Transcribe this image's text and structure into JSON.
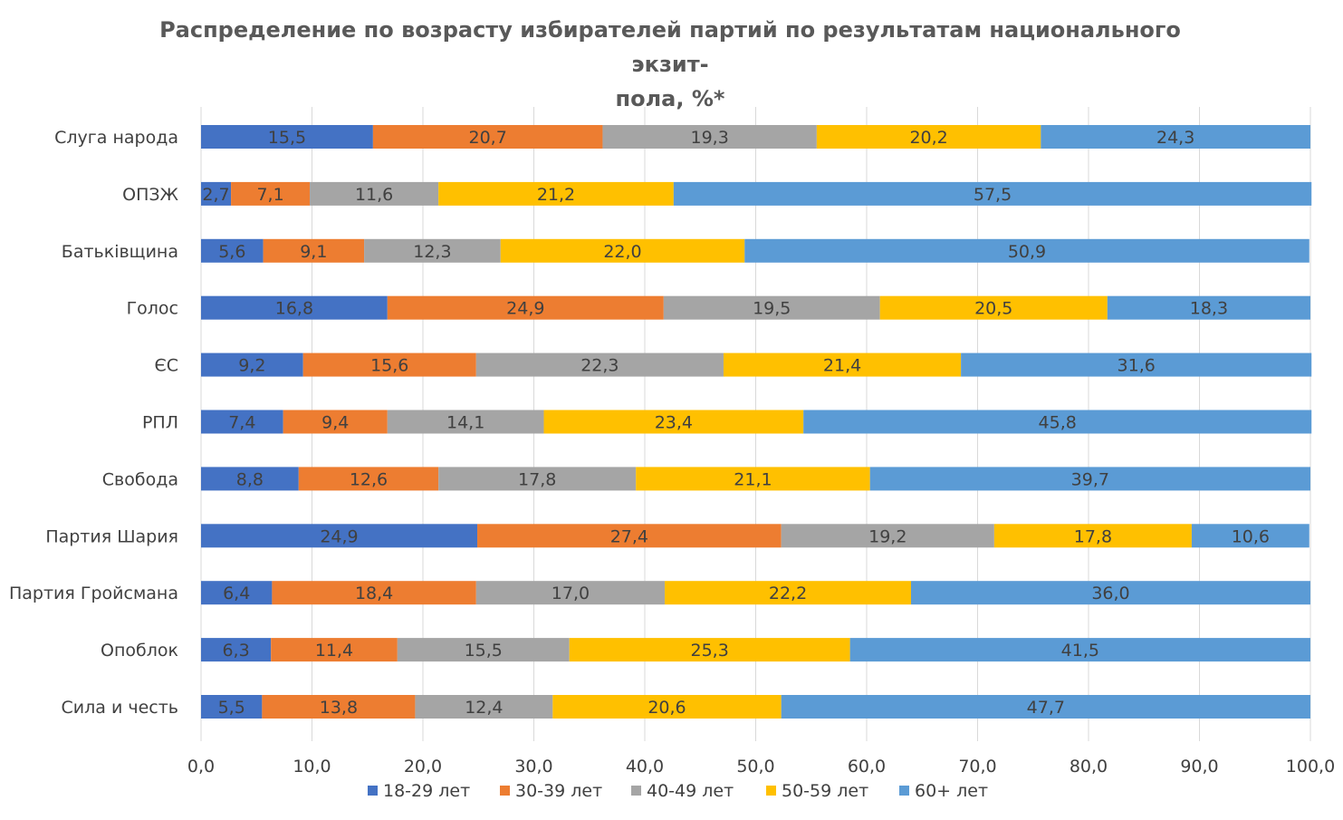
{
  "chart_data": {
    "type": "bar",
    "orientation": "horizontal",
    "stacked": true,
    "title": "Распределение по возрасту избирателей партий по результатам национального экзит-пола, %*",
    "title_lines": [
      "Распределение по возрасту избирателей партий по результатам национального экзит-",
      "пола, %*"
    ],
    "categories": [
      "Слуга народа",
      "ОПЗЖ",
      "Батьківщина",
      "Голос",
      "ЄС",
      "РПЛ",
      "Свобода",
      "Партия Шария",
      "Партия Гройсмана",
      "Опоблок",
      "Сила и честь"
    ],
    "series": [
      {
        "name": "18-29 лет",
        "color": "#4472C4",
        "values": [
          15.5,
          2.7,
          5.6,
          16.8,
          9.2,
          7.4,
          8.8,
          24.9,
          6.4,
          6.3,
          5.5
        ],
        "labels": [
          "15,5",
          "2,7",
          "5,6",
          "16,8",
          "9,2",
          "7,4",
          "8,8",
          "24,9",
          "6,4",
          "6,3",
          "5,5"
        ]
      },
      {
        "name": "30-39 лет",
        "color": "#ED7D31",
        "values": [
          20.7,
          7.1,
          9.1,
          24.9,
          15.6,
          9.4,
          12.6,
          27.4,
          18.4,
          11.4,
          13.8
        ],
        "labels": [
          "20,7",
          "7,1",
          "9,1",
          "24,9",
          "15,6",
          "9,4",
          "12,6",
          "27,4",
          "18,4",
          "11,4",
          "13,8"
        ]
      },
      {
        "name": "40-49 лет",
        "color": "#A5A5A5",
        "values": [
          19.3,
          11.6,
          12.3,
          19.5,
          22.3,
          14.1,
          17.8,
          19.2,
          17.0,
          15.5,
          12.4
        ],
        "labels": [
          "19,3",
          "11,6",
          "12,3",
          "19,5",
          "22,3",
          "14,1",
          "17,8",
          "19,2",
          "17,0",
          "15,5",
          "12,4"
        ]
      },
      {
        "name": "50-59 лет",
        "color": "#FFC000",
        "values": [
          20.2,
          21.2,
          22.0,
          20.5,
          21.4,
          23.4,
          21.1,
          17.8,
          22.2,
          25.3,
          20.6
        ],
        "labels": [
          "20,2",
          "21,2",
          "22,0",
          "20,5",
          "21,4",
          "23,4",
          "21,1",
          "17,8",
          "22,2",
          "25,3",
          "20,6"
        ]
      },
      {
        "name": "60+ лет",
        "color": "#5B9BD5",
        "values": [
          24.3,
          57.5,
          50.9,
          18.3,
          31.6,
          45.8,
          39.7,
          10.6,
          36.0,
          41.5,
          47.7
        ],
        "labels": [
          "24,3",
          "57,5",
          "50,9",
          "18,3",
          "31,6",
          "45,8",
          "39,7",
          "10,6",
          "36,0",
          "41,5",
          "47,7"
        ]
      }
    ],
    "xlim": [
      0,
      100
    ],
    "xticks": [
      0,
      10,
      20,
      30,
      40,
      50,
      60,
      70,
      80,
      90,
      100
    ],
    "xtick_labels": [
      "0,0",
      "10,0",
      "20,0",
      "30,0",
      "40,0",
      "50,0",
      "60,0",
      "70,0",
      "80,0",
      "90,0",
      "100,0"
    ],
    "grid": true,
    "legend_position": "bottom",
    "gridline_color": "#D9D9D9",
    "text_color": "#404040"
  }
}
